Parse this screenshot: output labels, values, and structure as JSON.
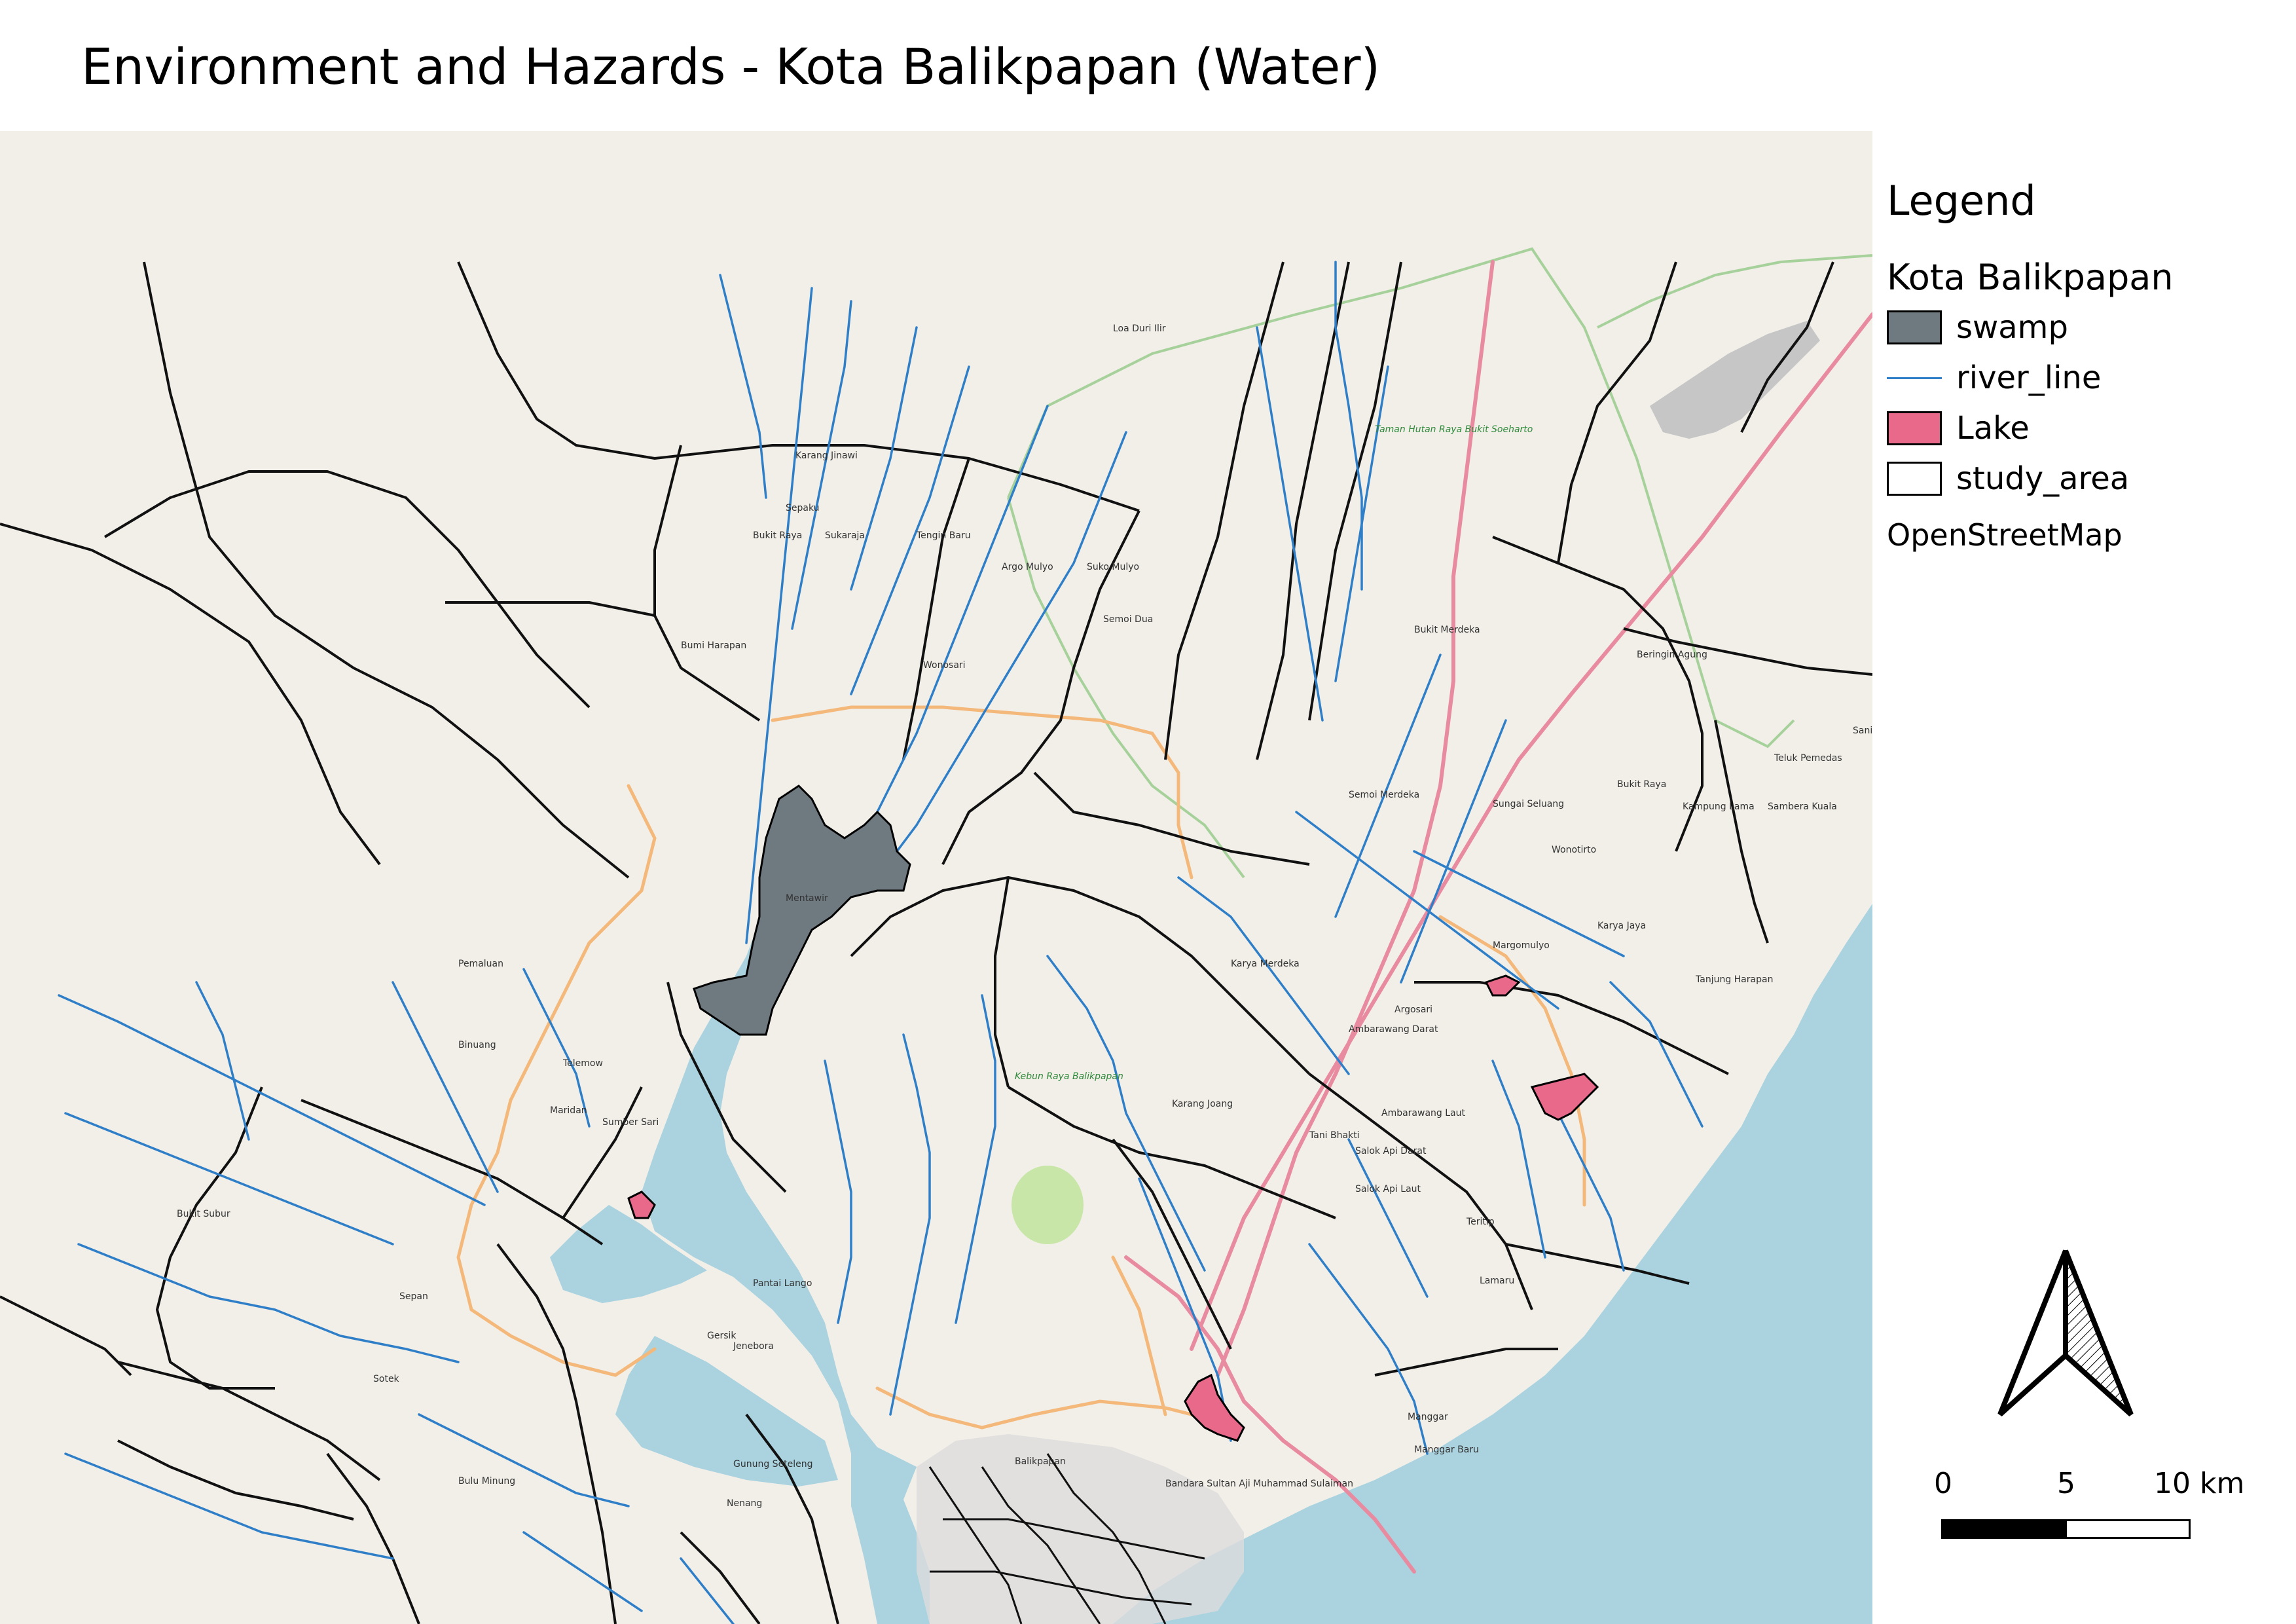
{
  "title": "Environment and Hazards - Kota Balikpapan (Water)",
  "legend": {
    "title": "Legend",
    "group": "Kota Balikpapan",
    "items": [
      {
        "label": "swamp",
        "icon": "swamp-swatch",
        "color": "#6f7980"
      },
      {
        "label": "river_line",
        "icon": "river-line-swatch",
        "color": "#2f7fc8"
      },
      {
        "label": "Lake",
        "icon": "lake-swatch",
        "color": "#e8698a"
      },
      {
        "label": "study_area",
        "icon": "study-area-swatch",
        "color": "#ffffff"
      }
    ],
    "basemap": "OpenStreetMap"
  },
  "scalebar": {
    "labels": [
      "0",
      "5",
      "10 km"
    ]
  },
  "colors": {
    "land": "#f2efe9",
    "sea": "#aad3df",
    "river": "#2f7fc8",
    "swamp": "#6f7980",
    "lake": "#e8698a",
    "road": "#f3b87a",
    "main_road": "#e98ba0",
    "boundary": "#111111",
    "park_boundary": "#a6d19a"
  },
  "places": [
    "Loa Duri Ilir",
    "Karang Jinawi",
    "Sepaku",
    "Bukit Raya",
    "Sukaraja",
    "Tengin Baru",
    "Argo Mulyo",
    "Suko Mulyo",
    "Semoi Dua",
    "Bumi Harapan",
    "Wonosari",
    "Taman Hutan Raya Bukit Soeharto",
    "Bukit Merdeka",
    "Beringin Agung",
    "Sanipah",
    "Teluk Pemedas",
    "Bukit Raya",
    "Semoi Merdeka",
    "Sungai Seluang",
    "Kampung Lama",
    "Sambera Kuala",
    "Wonotirto",
    "Karya Jaya",
    "Margomulyo",
    "Tanjung Harapan",
    "Mentawir",
    "Pemaluan",
    "Karya Merdeka",
    "Argosari",
    "Binuang",
    "Telemow",
    "Maridan",
    "Sumber Sari",
    "Tani Bhakti",
    "Ambarawang Darat",
    "Ambarawang Laut",
    "Salok Api Darat",
    "Salok Api Laut",
    "Karang Joang",
    "Kebun Raya Balikpapan",
    "Bukit Subur",
    "Teritip",
    "Lamaru",
    "Pantai Lango",
    "Gersik",
    "Jenebora",
    "Sepan",
    "Sotek",
    "Manggar",
    "Manggar Baru",
    "Bulu Minung",
    "Balikpapan",
    "Gunung Seteleng",
    "Nenang",
    "Bandara Sultan Aji Muhammad Sulaiman"
  ]
}
